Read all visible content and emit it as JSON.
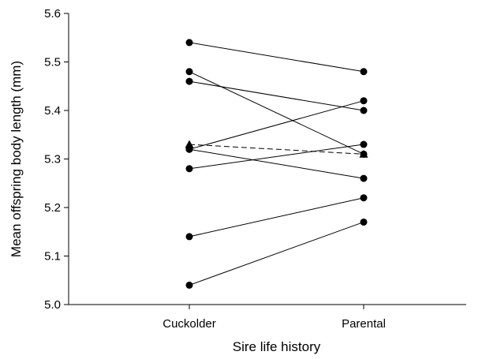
{
  "chart_data": {
    "type": "line",
    "categories": [
      "Cuckolder",
      "Parental"
    ],
    "xlabel": "Sire life history",
    "ylabel": "Mean offspring body length (mm)",
    "ylim": [
      5.0,
      5.6
    ],
    "yticks": [
      "5.0",
      "5.1",
      "5.2",
      "5.3",
      "5.4",
      "5.5",
      "5.6"
    ],
    "grid": false,
    "series": [
      {
        "values": [
          5.54,
          5.48
        ],
        "marker": "circle",
        "dash": "solid"
      },
      {
        "values": [
          5.48,
          5.31
        ],
        "marker": "circle",
        "dash": "solid"
      },
      {
        "values": [
          5.46,
          5.4
        ],
        "marker": "circle",
        "dash": "solid"
      },
      {
        "values": [
          5.32,
          5.42
        ],
        "marker": "circle",
        "dash": "solid"
      },
      {
        "values": [
          5.32,
          5.26
        ],
        "marker": "circle",
        "dash": "solid"
      },
      {
        "values": [
          5.33,
          5.31
        ],
        "marker": "triangle",
        "dash": "dashed"
      },
      {
        "values": [
          5.28,
          5.33
        ],
        "marker": "circle",
        "dash": "solid"
      },
      {
        "values": [
          5.14,
          5.22
        ],
        "marker": "circle",
        "dash": "solid"
      },
      {
        "values": [
          5.04,
          5.17
        ],
        "marker": "circle",
        "dash": "solid"
      }
    ],
    "colors": {
      "line": "#000000",
      "marker": "#000000",
      "background": "#ffffff"
    }
  }
}
